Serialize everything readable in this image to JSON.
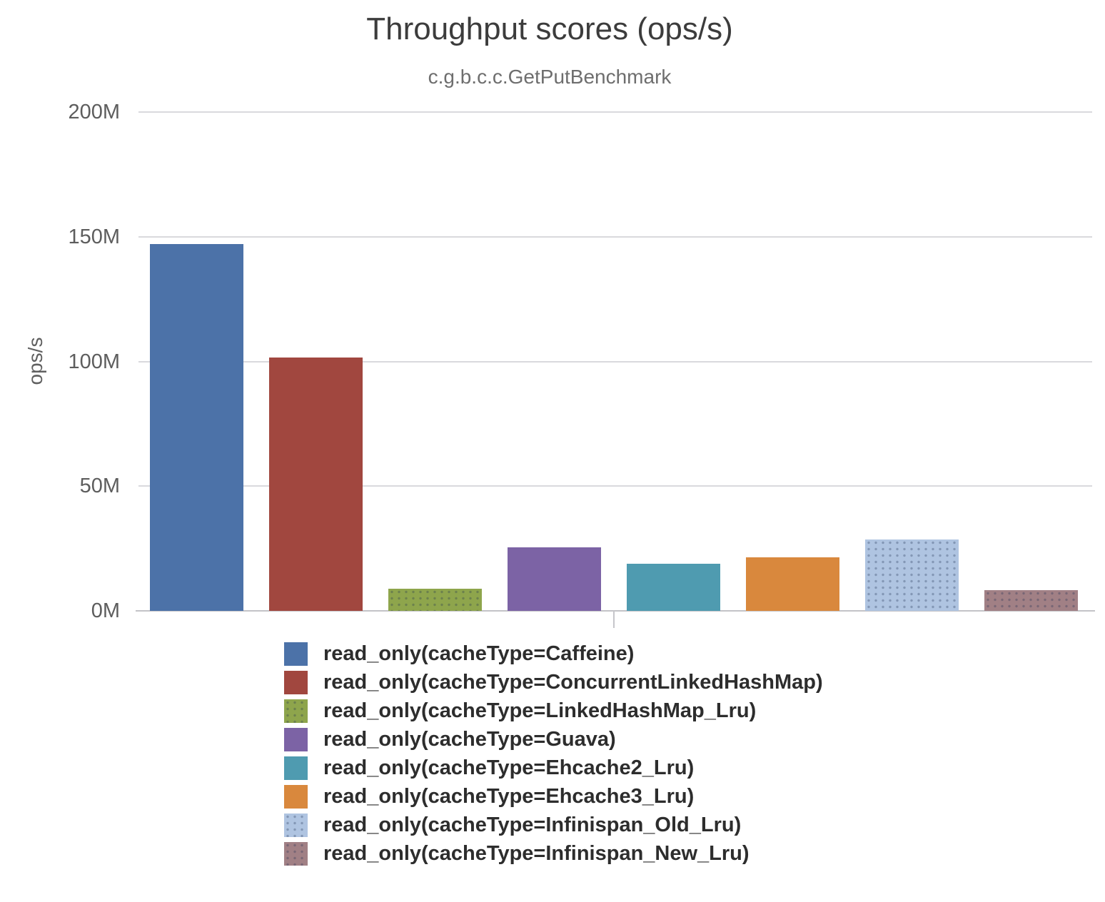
{
  "chart_data": {
    "type": "bar",
    "title": "Throughput scores (ops/s)",
    "subtitle": "c.g.b.c.c.GetPutBenchmark",
    "ylabel": "ops/s",
    "unit": "M ops/s",
    "ylim_m": [
      0,
      200
    ],
    "grid": true,
    "legend_position": "bottom",
    "yticks": [
      {
        "value": 0,
        "label": "0M"
      },
      {
        "value": 50,
        "label": "50M"
      },
      {
        "value": 100,
        "label": "100M"
      },
      {
        "value": 150,
        "label": "150M"
      },
      {
        "value": 200,
        "label": "200M"
      }
    ],
    "categories": [
      "read_only(cacheType=Caffeine)",
      "read_only(cacheType=ConcurrentLinkedHashMap)",
      "read_only(cacheType=LinkedHashMap_Lru)",
      "read_only(cacheType=Guava)",
      "read_only(cacheType=Ehcache2_Lru)",
      "read_only(cacheType=Ehcache3_Lru)",
      "read_only(cacheType=Infinispan_Old_Lru)",
      "read_only(cacheType=Infinispan_New_Lru)"
    ],
    "keys": [
      "caffeine",
      "concurrent-linked-hash-map",
      "linked-hash-map-lru",
      "guava",
      "ehcache2-lru",
      "ehcache3-lru",
      "infinispan-old-lru",
      "infinispan-new-lru"
    ],
    "values_m": [
      147.1,
      101.7,
      8.9,
      25.5,
      18.9,
      21.6,
      28.6,
      8.3
    ],
    "colors": [
      "#4c72a8",
      "#a1473f",
      "#8ea54c",
      "#7c63a5",
      "#4f9bb0",
      "#d9883d",
      "#afc4e1",
      "#a18085"
    ],
    "dotted_texture": [
      false,
      false,
      true,
      false,
      false,
      false,
      true,
      true
    ]
  }
}
